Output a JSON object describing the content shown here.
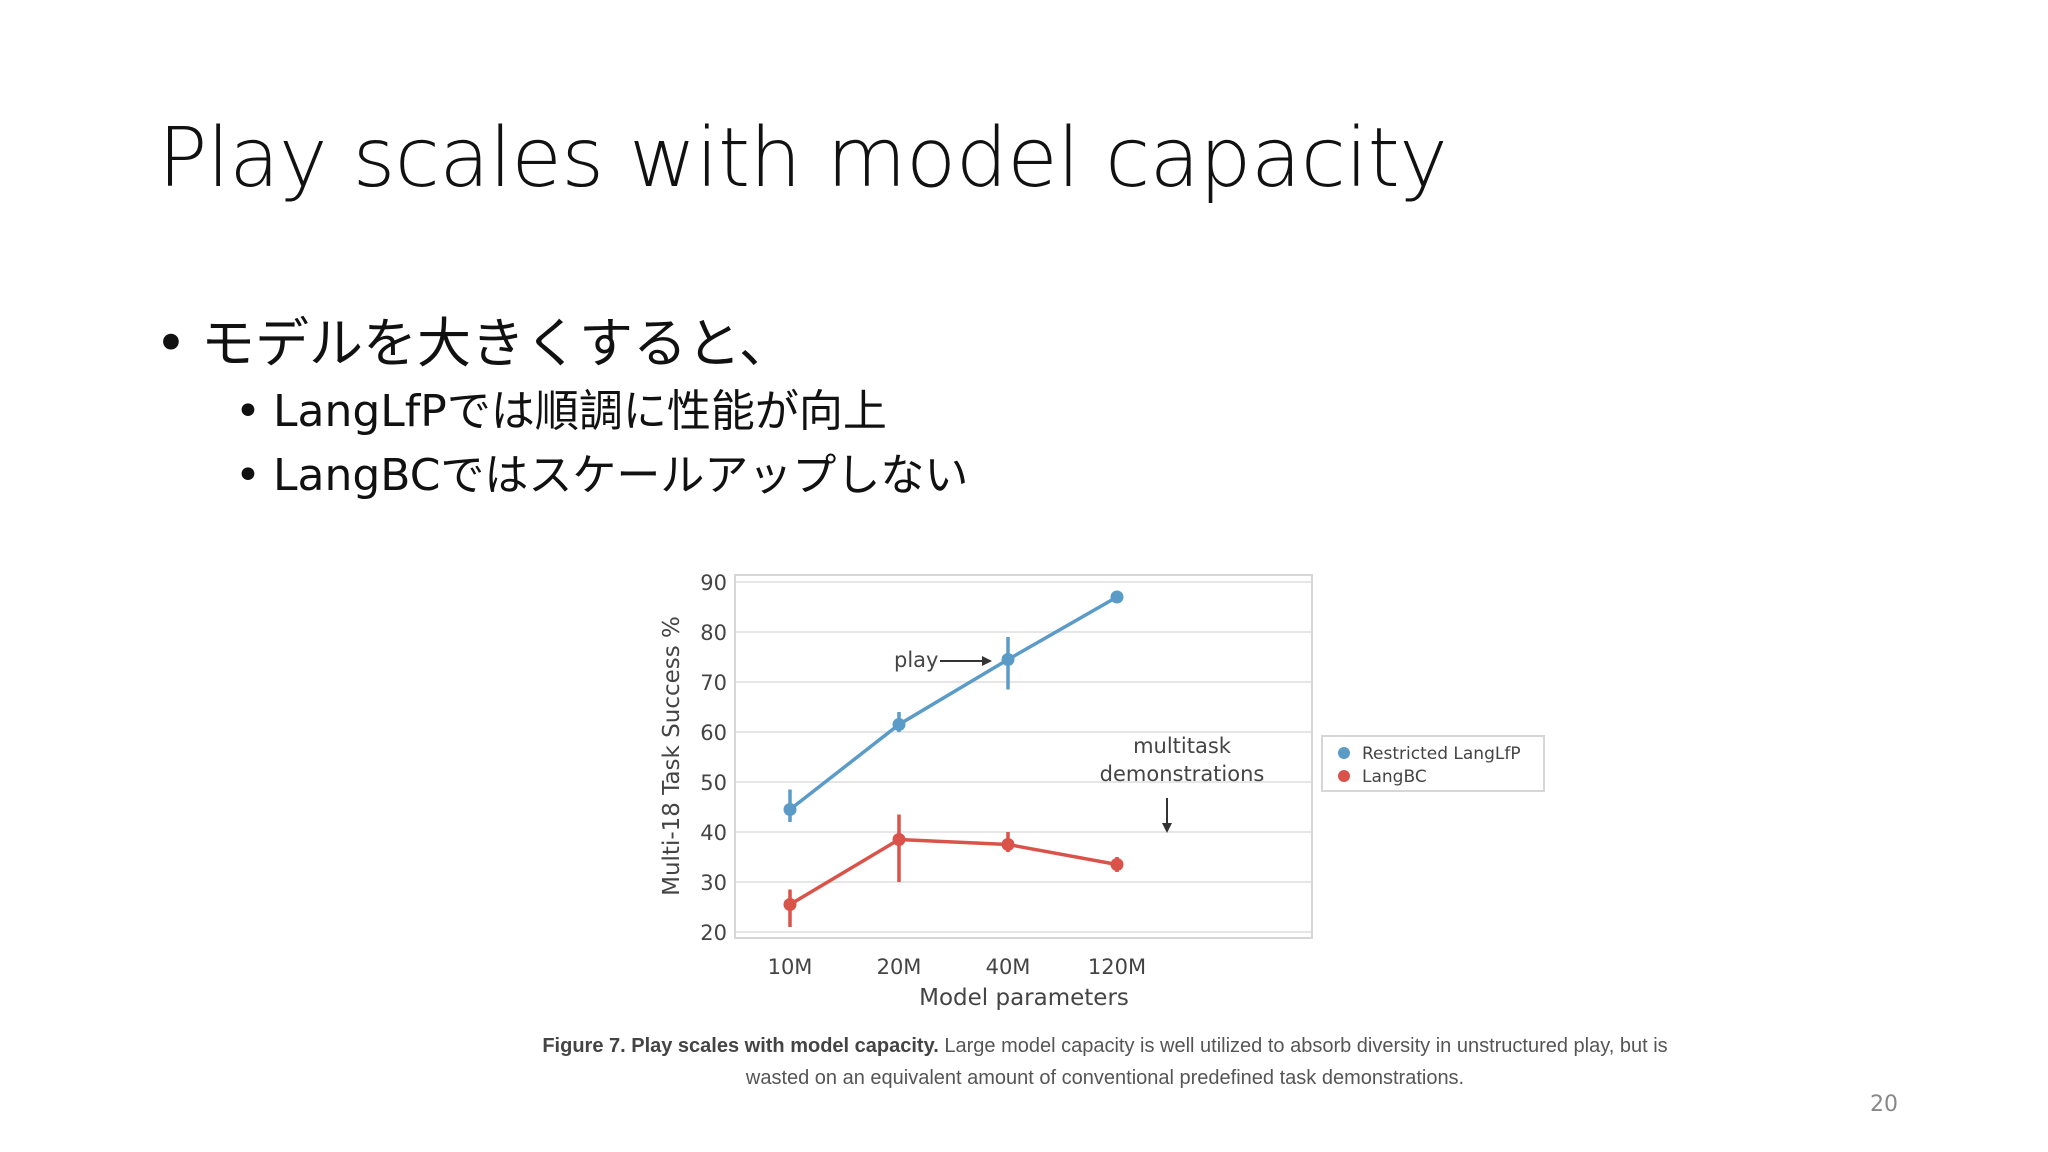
{
  "slide": {
    "title": "Play scales with model capacity",
    "bullet_main": "モデルを大きくすると、",
    "sub_bullets": [
      "LangLfPでは順調に性能が向上",
      "LangBCではスケールアップしない"
    ],
    "bullet_glyph": "•",
    "page_number": "20"
  },
  "caption": {
    "label": "Figure 7. Play scales with model capacity.",
    "text": "Large model capacity is well utilized to absorb diversity in unstructured play, but is wasted on an equivalent amount of conventional predefined task demonstrations."
  },
  "chart_data": {
    "type": "line",
    "categories": [
      "10M",
      "20M",
      "40M",
      "120M"
    ],
    "xlabel": "Model parameters",
    "ylabel": "Multi-18 Task Success %",
    "ylim": [
      20,
      90
    ],
    "yticks": [
      20,
      30,
      40,
      50,
      60,
      70,
      80,
      90
    ],
    "grid": true,
    "legend_position": "right",
    "series": [
      {
        "name": "Restricted LangLfP",
        "color": "#5b9bc8",
        "values": [
          44.5,
          61.5,
          74.5,
          87
        ],
        "err_low": [
          42,
          60,
          68.5,
          87
        ],
        "err_high": [
          48.5,
          64,
          79,
          87
        ]
      },
      {
        "name": "LangBC",
        "color": "#d9534a",
        "values": [
          25.5,
          38.5,
          37.5,
          33.5
        ],
        "err_low": [
          21,
          30,
          36,
          32
        ],
        "err_high": [
          28.5,
          43.5,
          40,
          35
        ]
      }
    ],
    "annotations": [
      {
        "text": "play",
        "arrow": "right"
      },
      {
        "text_lines": [
          "multitask",
          "demonstrations"
        ],
        "arrow": "down"
      }
    ]
  }
}
